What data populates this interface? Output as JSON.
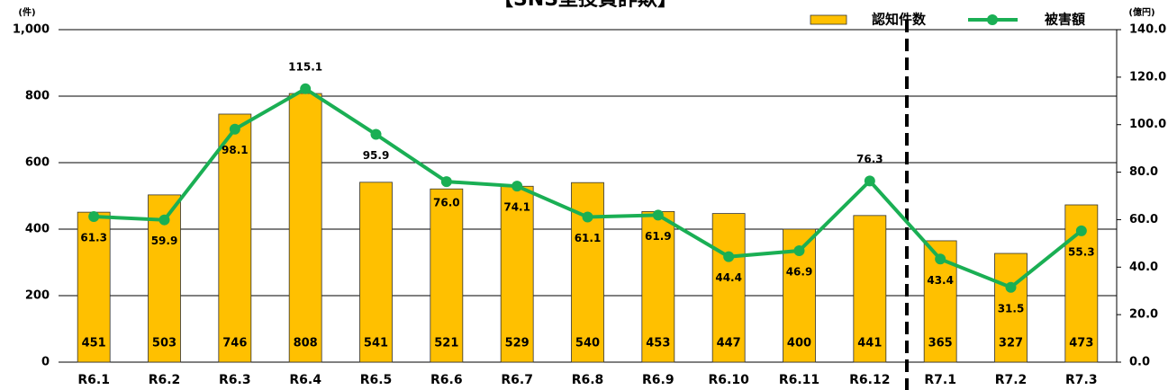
{
  "chart_data": {
    "type": "bar-line",
    "title": "【SNS型投資詐欺】",
    "y_unit": "(件)",
    "y2_unit": "(億円)",
    "categories": [
      "R6.1",
      "R6.2",
      "R6.3",
      "R6.4",
      "R6.5",
      "R6.6",
      "R6.7",
      "R6.8",
      "R6.9",
      "R6.10",
      "R6.11",
      "R6.12",
      "R7.1",
      "R7.2",
      "R7.3"
    ],
    "series": [
      {
        "name": "認知件数",
        "type": "bar",
        "color": "#ffc000",
        "values": [
          451,
          503,
          746,
          808,
          541,
          521,
          529,
          540,
          453,
          447,
          400,
          441,
          365,
          327,
          473
        ]
      },
      {
        "name": "被害額",
        "type": "line",
        "axis": "y2",
        "color": "#1aaf54",
        "values": [
          61.3,
          59.9,
          98.1,
          115.1,
          95.9,
          76.0,
          74.1,
          61.1,
          61.9,
          44.4,
          46.9,
          76.3,
          43.4,
          31.5,
          55.3
        ],
        "value_labels": [
          "61.3",
          "59.9",
          "98.1",
          "115.1",
          "95.9",
          "76.0",
          "74.1",
          "61.1",
          "61.9",
          "44.4",
          "46.9",
          "76.3",
          "43.4",
          "31.5",
          "55.3"
        ]
      }
    ],
    "ylim": [
      0,
      1000
    ],
    "yticks": [
      0,
      200,
      400,
      600,
      800,
      {
        "value": 1000,
        "label": "1,000"
      }
    ],
    "y2lim": [
      0,
      140
    ],
    "y2ticks": [
      {
        "value": 0,
        "label": "0.0"
      },
      {
        "value": 20,
        "label": "20.0"
      },
      {
        "value": 40,
        "label": "40.0"
      },
      {
        "value": 60,
        "label": "60.0"
      },
      {
        "value": 80,
        "label": "80.0"
      },
      {
        "value": 100,
        "label": "100.0"
      },
      {
        "value": 120,
        "label": "120.0"
      },
      {
        "value": 140,
        "label": "140.0"
      }
    ],
    "grid": true
  }
}
